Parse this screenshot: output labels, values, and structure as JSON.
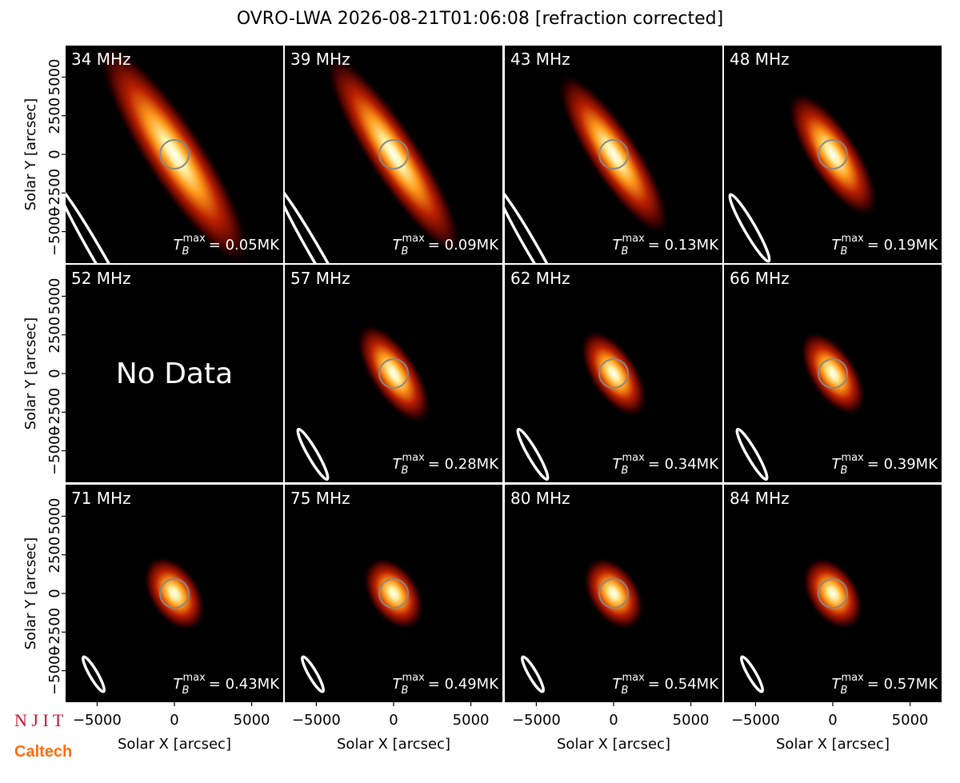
{
  "chart_data": {
    "type": "image-grid",
    "title": "OVRO-LWA 2026-08-21T01:06:08 [refraction corrected]",
    "xlabel": "Solar X [arcsec]",
    "ylabel": "Solar Y [arcsec]",
    "xlim": [
      -7040,
      7040
    ],
    "ylim": [
      -7040,
      7040
    ],
    "xticks": [
      {
        "value": -5000,
        "label": "−5000"
      },
      0,
      5000
    ],
    "yticks": [
      {
        "value": -5000,
        "label": "−5000"
      },
      {
        "value": -2500,
        "label": "−2500"
      },
      0,
      2500,
      5000
    ],
    "tb_symbol": "T",
    "tb_sub": "B",
    "tb_sup": "max",
    "panels": [
      {
        "freq": "34 MHz",
        "tb_max": 0.05,
        "value_label": "= 0.05MK"
      },
      {
        "freq": "39 MHz",
        "tb_max": 0.09,
        "value_label": "= 0.09MK"
      },
      {
        "freq": "43 MHz",
        "tb_max": 0.13,
        "value_label": "= 0.13MK"
      },
      {
        "freq": "48 MHz",
        "tb_max": 0.19,
        "value_label": "= 0.19MK"
      },
      {
        "freq": "52 MHz",
        "note": "No Data"
      },
      {
        "freq": "57 MHz",
        "tb_max": 0.28,
        "value_label": "= 0.28MK"
      },
      {
        "freq": "62 MHz",
        "tb_max": 0.34,
        "value_label": "= 0.34MK"
      },
      {
        "freq": "66 MHz",
        "tb_max": 0.39,
        "value_label": "= 0.39MK"
      },
      {
        "freq": "71 MHz",
        "tb_max": 0.43,
        "value_label": "= 0.43MK"
      },
      {
        "freq": "75 MHz",
        "tb_max": 0.49,
        "value_label": "= 0.49MK"
      },
      {
        "freq": "80 MHz",
        "tb_max": 0.54,
        "value_label": "= 0.54MK"
      },
      {
        "freq": "84 MHz",
        "tb_max": 0.57,
        "value_label": "= 0.57MK"
      }
    ],
    "logos": [
      "N J I T",
      "Caltech"
    ]
  }
}
